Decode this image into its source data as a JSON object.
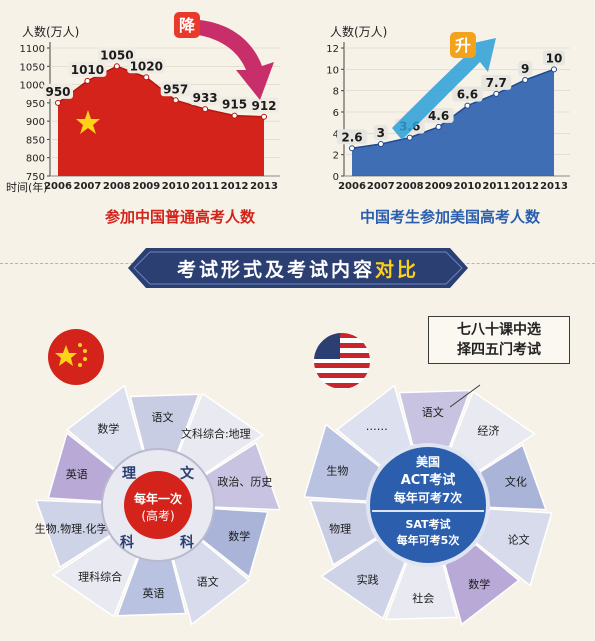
{
  "colors": {
    "china_red": "#d3231b",
    "us_blue": "#2b5fae",
    "trend_down": "#c2185b",
    "trend_up": "#2a9fd6",
    "banner": "#2b3f73",
    "highlight": "#ffd21a"
  },
  "chart_data": [
    {
      "type": "area",
      "title": "参加中国普通高考人数",
      "ylabel": "人数(万人)",
      "xlabel": "时间(年)",
      "x": [
        "2006",
        "2007",
        "2008",
        "2009",
        "2010",
        "2011",
        "2012",
        "2013"
      ],
      "values": [
        950,
        1010,
        1050,
        1020,
        957,
        933,
        915,
        912
      ],
      "ylim": [
        750,
        1100
      ],
      "yticks": [
        "750",
        "800",
        "850",
        "900",
        "950",
        "1000",
        "1050",
        "1100"
      ],
      "trend_label": "降",
      "color": "#d3231b"
    },
    {
      "type": "line",
      "title": "中国考生参加美国高考人数",
      "ylabel": "人数(万人)",
      "xlabel": "时间(年)",
      "x": [
        "2006",
        "2007",
        "2008",
        "2009",
        "2010",
        "2011",
        "2012",
        "2013"
      ],
      "values": [
        2.6,
        3,
        3.6,
        4.6,
        6.6,
        7.7,
        9,
        10
      ],
      "value_labels": [
        "2.6",
        "3",
        "3.6",
        "4.6",
        "6.6",
        "7.7",
        "9",
        "10"
      ],
      "ylim": [
        0,
        12
      ],
      "yticks": [
        "0",
        "2",
        "4",
        "6",
        "8",
        "10",
        "12"
      ],
      "trend_label": "升",
      "color": "#2b5fae"
    }
  ],
  "section_title": {
    "main": "考试形式及考试内容",
    "highlight": "对比"
  },
  "note": {
    "line1": "七八十课中选",
    "line2": "择四五门考试"
  },
  "china_wheel": {
    "center_ring": {
      "left": "理",
      "right": "文",
      "bottom_left": "科",
      "bottom_right": "科"
    },
    "center_line1": "每年一次",
    "center_line2": "(高考)",
    "segments": [
      "语文",
      "文科综合:地理",
      "政治、历史",
      "数学",
      "语文",
      "英语",
      "理科综合",
      "生物.物理.化学",
      "英语",
      "数学"
    ]
  },
  "us_wheel": {
    "center_line1": "美国",
    "center_line2": "ACT考试",
    "center_line3": "每年可考7次",
    "center_line4": "SAT考试",
    "center_line5": "每年可考5次",
    "segments": [
      "语文",
      "经济",
      "文化",
      "论文",
      "数学",
      "社会",
      "实践",
      "物理",
      "生物",
      "……"
    ]
  }
}
